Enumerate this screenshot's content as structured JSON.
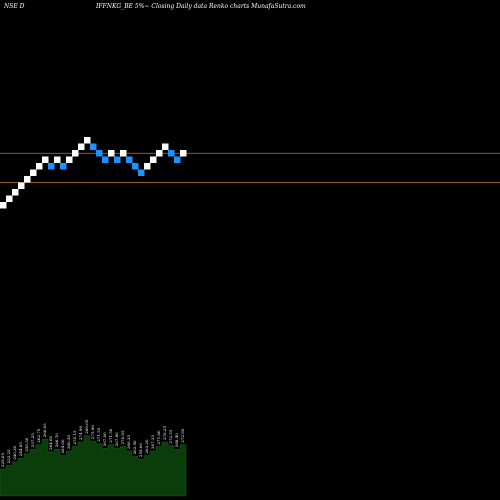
{
  "header": {
    "exchange_label": "NSE D",
    "title": "IFFNKG_BE 5%~ Closing Daily data Renko charts MunafaSutra.com"
  },
  "colors": {
    "background": "#000000",
    "up_brick": "#ffffff",
    "down_brick": "#1e90ff",
    "level_line": "#c8782a",
    "volume_fill": "#0b3d0b",
    "volume_label": "#ffffff"
  },
  "chart_data": {
    "type": "renko",
    "title": "IFFNKG_BE 5%~ Closing Daily data Renko charts MunafaSutra.com",
    "brick_size_label": "5%",
    "bricks": [
      {
        "dir": "up",
        "level": 1
      },
      {
        "dir": "up",
        "level": 2
      },
      {
        "dir": "up",
        "level": 3
      },
      {
        "dir": "up",
        "level": 4
      },
      {
        "dir": "up",
        "level": 5
      },
      {
        "dir": "up",
        "level": 6
      },
      {
        "dir": "up",
        "level": 7
      },
      {
        "dir": "up",
        "level": 8
      },
      {
        "dir": "down",
        "level": 7
      },
      {
        "dir": "up",
        "level": 8
      },
      {
        "dir": "down",
        "level": 7
      },
      {
        "dir": "up",
        "level": 8
      },
      {
        "dir": "up",
        "level": 9
      },
      {
        "dir": "up",
        "level": 10
      },
      {
        "dir": "up",
        "level": 11
      },
      {
        "dir": "down",
        "level": 10
      },
      {
        "dir": "down",
        "level": 9
      },
      {
        "dir": "down",
        "level": 8
      },
      {
        "dir": "up",
        "level": 9
      },
      {
        "dir": "down",
        "level": 8
      },
      {
        "dir": "up",
        "level": 9
      },
      {
        "dir": "down",
        "level": 8
      },
      {
        "dir": "down",
        "level": 7
      },
      {
        "dir": "down",
        "level": 6
      },
      {
        "dir": "up",
        "level": 7
      },
      {
        "dir": "up",
        "level": 8
      },
      {
        "dir": "up",
        "level": 9
      },
      {
        "dir": "up",
        "level": 10
      },
      {
        "dir": "down",
        "level": 9
      },
      {
        "dir": "down",
        "level": 8
      },
      {
        "dir": "up",
        "level": 9
      }
    ],
    "reference_levels": [
      4,
      8.5
    ],
    "volume": [
      {
        "label": "229.05",
        "v": 0.3
      },
      {
        "label": "232.25",
        "v": 0.34
      },
      {
        "label": "240.30",
        "v": 0.38
      },
      {
        "label": "244.85",
        "v": 0.42
      },
      {
        "label": "250.50",
        "v": 0.47
      },
      {
        "label": "257.25",
        "v": 0.52
      },
      {
        "label": "262.75",
        "v": 0.57
      },
      {
        "label": "266.05",
        "v": 0.63
      },
      {
        "label": "264.60",
        "v": 0.49
      },
      {
        "label": "266.10",
        "v": 0.52
      },
      {
        "label": "264.00",
        "v": 0.45
      },
      {
        "label": "266.30",
        "v": 0.5
      },
      {
        "label": "270.15",
        "v": 0.55
      },
      {
        "label": "274.90",
        "v": 0.6
      },
      {
        "label": "280.05",
        "v": 0.67
      },
      {
        "label": "275.90",
        "v": 0.61
      },
      {
        "label": "271.55",
        "v": 0.58
      },
      {
        "label": "267.00",
        "v": 0.53
      },
      {
        "label": "271.50",
        "v": 0.57
      },
      {
        "label": "267.80",
        "v": 0.53
      },
      {
        "label": "270.85",
        "v": 0.55
      },
      {
        "label": "266.35",
        "v": 0.5
      },
      {
        "label": "262.50",
        "v": 0.44
      },
      {
        "label": "259.60",
        "v": 0.41
      },
      {
        "label": "263.20",
        "v": 0.45
      },
      {
        "label": "267.35",
        "v": 0.5
      },
      {
        "label": "271.80",
        "v": 0.55
      },
      {
        "label": "276.25",
        "v": 0.6
      },
      {
        "label": "272.55",
        "v": 0.56
      },
      {
        "label": "268.40",
        "v": 0.52
      },
      {
        "label": "272.95",
        "v": 0.57
      }
    ]
  }
}
